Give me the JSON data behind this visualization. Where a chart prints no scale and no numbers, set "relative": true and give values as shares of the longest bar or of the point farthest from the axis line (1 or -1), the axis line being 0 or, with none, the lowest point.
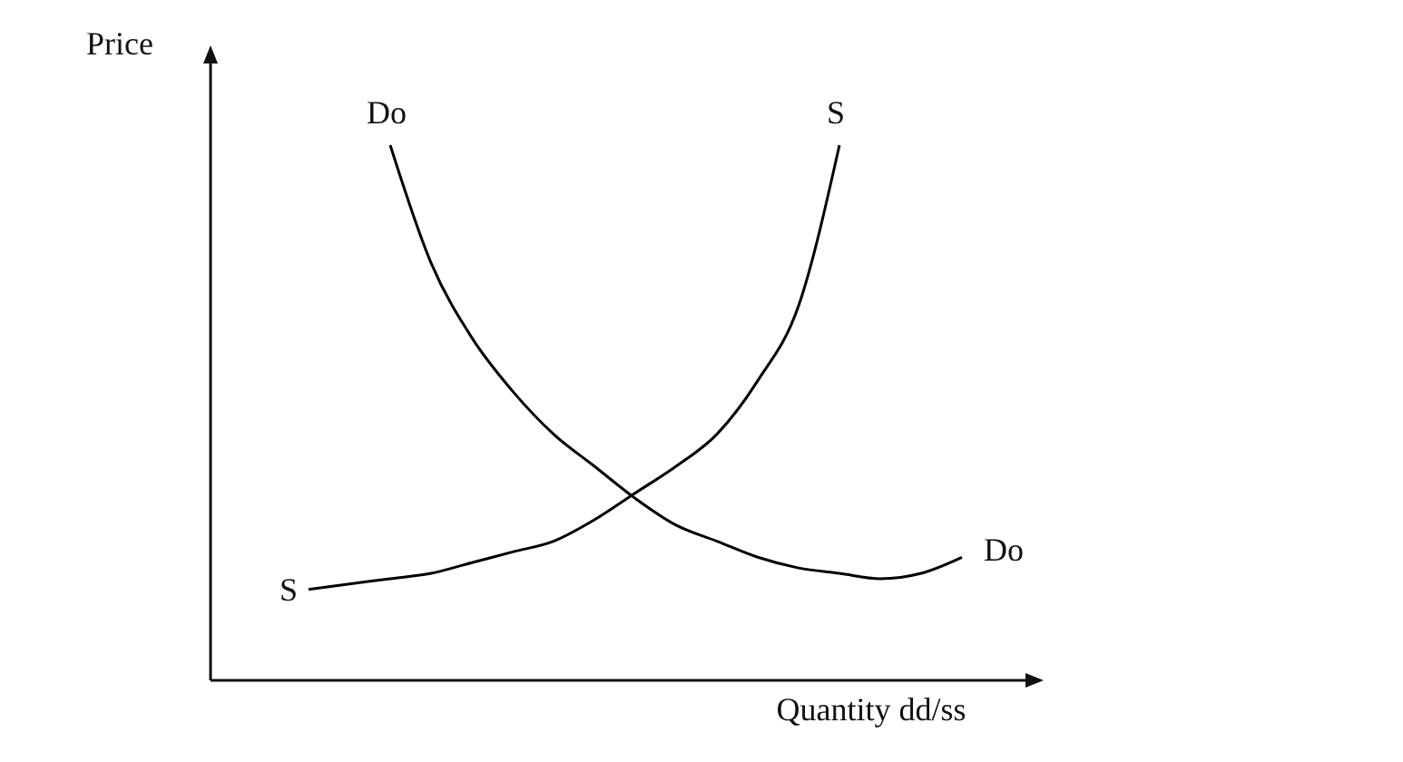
{
  "chart_data": {
    "type": "line",
    "relative": true,
    "xlabel": "Quantity dd/ss",
    "ylabel": "Price",
    "categories": [
      null,
      null,
      null,
      null,
      null,
      null,
      null,
      null,
      null,
      null,
      null,
      null,
      null,
      null,
      null,
      null,
      null
    ],
    "series": [
      {
        "name": "Do",
        "color": "#000000",
        "values": [
          null,
          null,
          1,
          0.78,
          0.64,
          0.54,
          0.46,
          0.4,
          0.34,
          0.29,
          0.26,
          0.23,
          0.21,
          0.2,
          0.19,
          0.2,
          0.23
        ]
      },
      {
        "name": "S",
        "color": "#000000",
        "values": [
          0.17,
          0.18,
          0.19,
          0.2,
          0.22,
          0.24,
          0.26,
          0.3,
          0.35,
          0.4,
          0.46,
          0.56,
          0.7,
          1,
          null,
          null,
          null
        ]
      }
    ],
    "grid": false,
    "marker": "none",
    "line_style": "solid",
    "tick_labels": false
  }
}
